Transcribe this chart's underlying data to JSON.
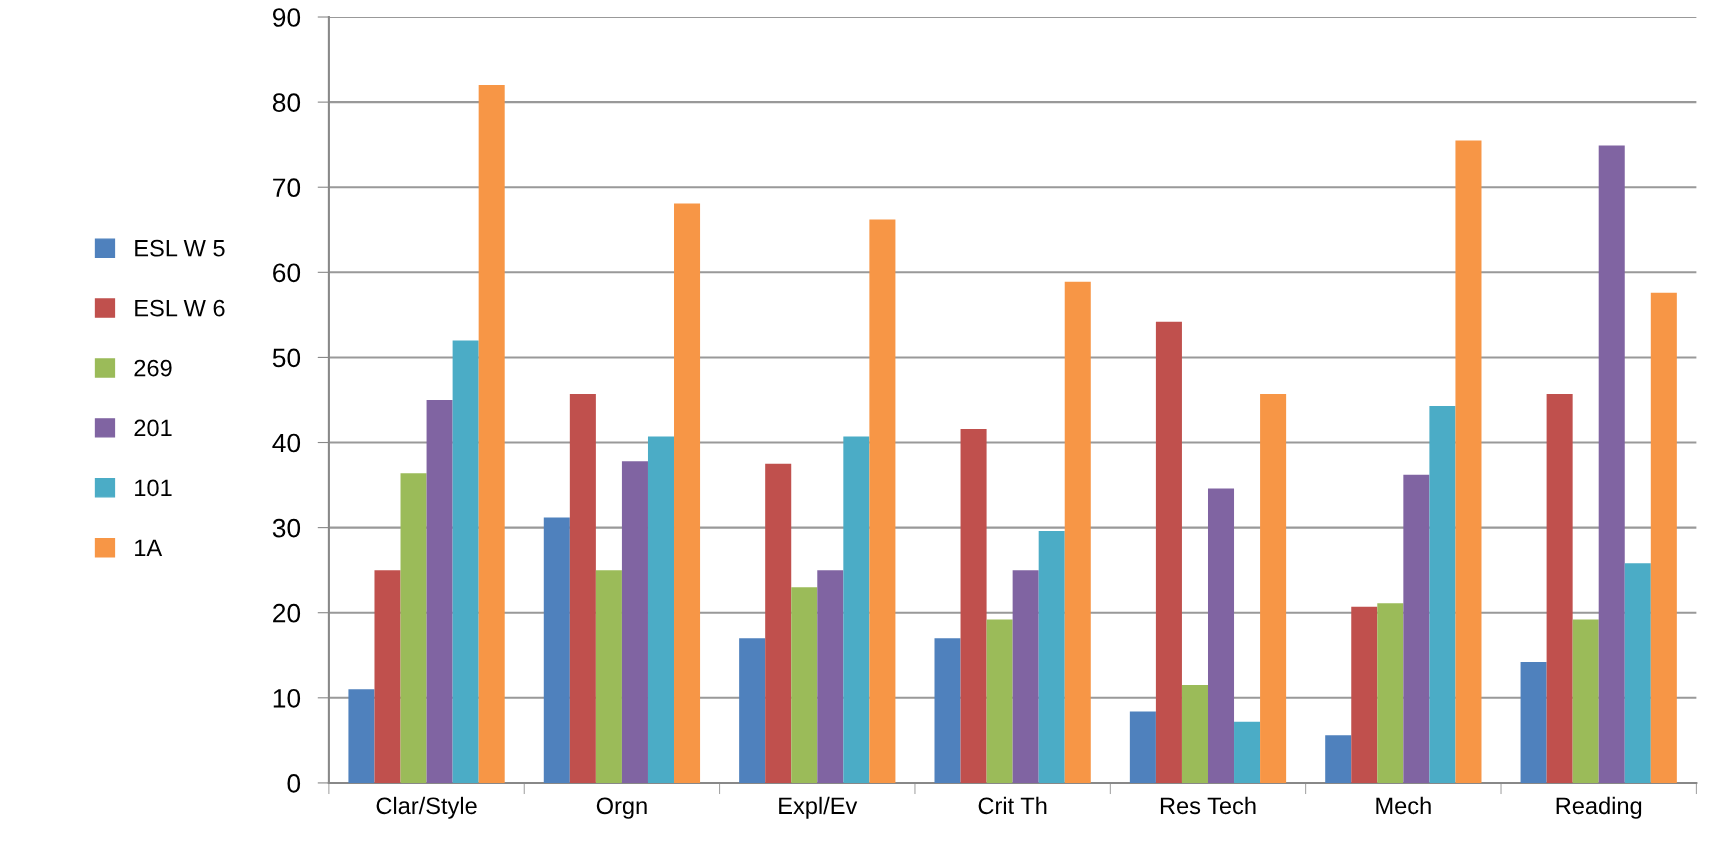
{
  "chart_data": {
    "type": "bar",
    "categories": [
      "Clar/Style",
      "Orgn",
      "Expl/Ev",
      "Crit Th",
      "Res Tech",
      "Mech",
      "Reading"
    ],
    "series": [
      {
        "name": "ESL W 5",
        "color": "#4f81bd",
        "values": [
          11,
          31.2,
          17,
          17,
          8.4,
          5.6,
          14.2
        ]
      },
      {
        "name": "ESL W 6",
        "color": "#c0504d",
        "values": [
          25,
          45.7,
          37.5,
          41.6,
          54.2,
          20.7,
          45.7
        ]
      },
      {
        "name": "269",
        "color": "#9bbb59",
        "values": [
          36.4,
          25,
          23,
          19.2,
          11.5,
          21.1,
          19.2
        ]
      },
      {
        "name": "201",
        "color": "#8064a2",
        "values": [
          45,
          37.8,
          25,
          25,
          34.6,
          36.2,
          74.9
        ]
      },
      {
        "name": "101",
        "color": "#4bacc6",
        "values": [
          52,
          40.7,
          40.7,
          29.6,
          7.2,
          44.3,
          25.8
        ]
      },
      {
        "name": "1A",
        "color": "#f79646",
        "values": [
          82,
          68.1,
          66.2,
          58.9,
          45.7,
          75.5,
          57.6
        ]
      }
    ],
    "ylim": [
      0,
      90
    ],
    "yticks": [
      0,
      10,
      20,
      30,
      40,
      50,
      60,
      70,
      80,
      90
    ],
    "grid": "y",
    "legend": "left"
  }
}
